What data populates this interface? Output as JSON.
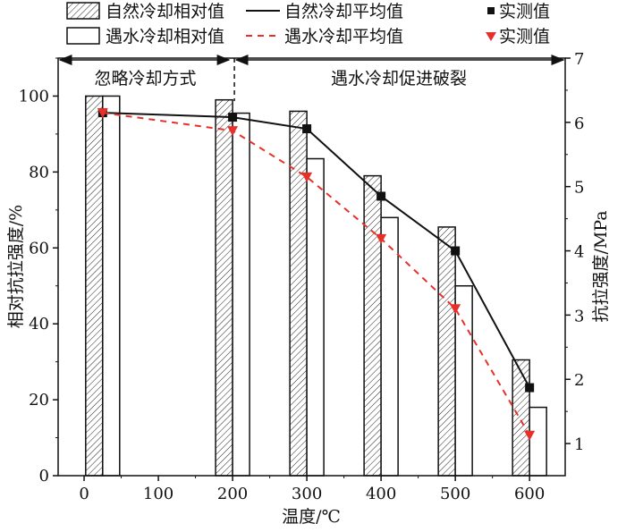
{
  "chart_data": {
    "type": "bar",
    "xlabel": "温度/℃",
    "ylabel": "相对抗拉强度/%",
    "y2label": "抗拉强度/MPa",
    "xlim": [
      -35,
      648
    ],
    "ylim": [
      0,
      110
    ],
    "y2lim": [
      0.5,
      7
    ],
    "xticks": [
      0,
      100,
      200,
      300,
      400,
      500,
      600
    ],
    "yticks": [
      0,
      20,
      40,
      60,
      80,
      100
    ],
    "y2ticks": [
      1,
      2,
      3,
      4,
      5,
      6,
      7
    ],
    "grid": false,
    "legend_placement": "top",
    "x": [
      25,
      200,
      300,
      400,
      500,
      600
    ],
    "bar_series": [
      {
        "name": "自然冷却相对值",
        "style": "hatched",
        "values": [
          100,
          99,
          96,
          79,
          65.5,
          30.5
        ]
      },
      {
        "name": "遇水冷却相对值",
        "style": "white",
        "values": [
          100,
          95.5,
          83.5,
          68,
          50,
          18
        ]
      }
    ],
    "line_series": [
      {
        "name": "自然冷却平均值",
        "color": "#111111",
        "dash": "solid",
        "marker_name": "实测值",
        "marker": "square",
        "values": [
          6.15,
          6.08,
          5.9,
          4.85,
          4.0,
          1.87
        ]
      },
      {
        "name": "遇水冷却平均值",
        "color": "#e8302a",
        "dash": "dashed",
        "marker_name": "实测值",
        "marker": "triangle-down",
        "values": [
          6.15,
          5.87,
          5.15,
          4.19,
          3.1,
          1.13
        ]
      }
    ],
    "annotations": [
      {
        "text": "忽略冷却方式",
        "from": -35,
        "to": 200
      },
      {
        "text": "遇水冷却促进破裂",
        "from": 200,
        "to": 648
      }
    ]
  }
}
